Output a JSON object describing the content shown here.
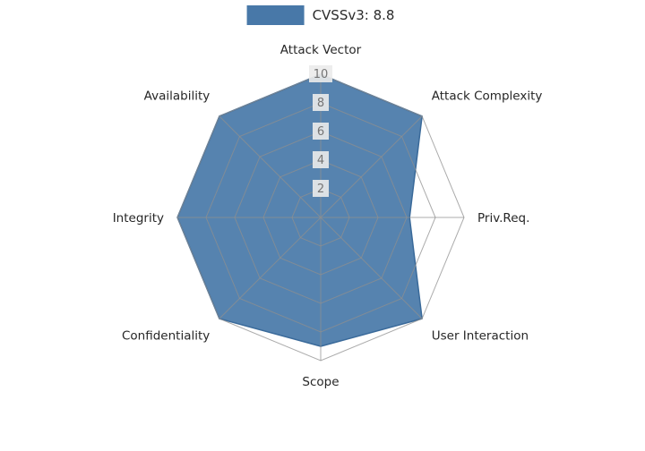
{
  "chart_data": {
    "type": "radar",
    "legend": "CVSSv3: 8.8",
    "categories": [
      "Attack Vector",
      "Attack Complexity",
      "Priv.Req.",
      "User Interaction",
      "Scope",
      "Confidentiality",
      "Integrity",
      "Availability"
    ],
    "values": [
      10,
      10,
      6.2,
      10,
      9,
      10,
      10,
      10
    ],
    "ticks": [
      2,
      4,
      6,
      8,
      10
    ],
    "rmax": 10,
    "fill_color": "#4878a8",
    "fill_opacity": 0.92,
    "line_color": "#3a6a9a",
    "grid_color": "#8f8f8f",
    "tick_color": "#757575",
    "tick_bg": "#ebebeb",
    "label_color": "#262626",
    "legend_position": "top-center",
    "grid": true
  }
}
